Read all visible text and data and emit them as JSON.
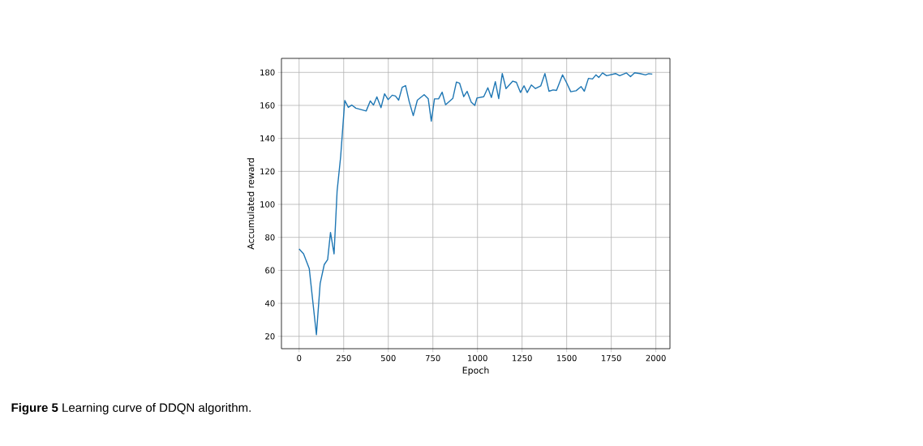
{
  "chart_data": {
    "type": "line",
    "xlabel": "Epoch",
    "ylabel": "Accumulated reward",
    "annotations": [
      "**Figure 5** Learning curve of DDQN algorithm."
    ],
    "x": [
      0,
      25,
      57,
      97,
      118,
      141,
      160,
      176,
      196,
      213,
      233,
      256,
      276,
      295,
      318,
      376,
      399,
      417,
      436,
      459,
      479,
      499,
      522,
      540,
      558,
      578,
      597,
      617,
      640,
      663,
      701,
      724,
      741,
      759,
      782,
      802,
      821,
      862,
      882,
      900,
      923,
      942,
      965,
      985,
      997,
      1035,
      1058,
      1078,
      1100,
      1119,
      1139,
      1160,
      1198,
      1218,
      1241,
      1261,
      1279,
      1302,
      1325,
      1355,
      1378,
      1401,
      1424,
      1443,
      1477,
      1500,
      1523,
      1553,
      1581,
      1599,
      1622,
      1645,
      1664,
      1680,
      1701,
      1724,
      1774,
      1797,
      1835,
      1858,
      1881,
      1911,
      1942,
      1960,
      1980
    ],
    "series": [
      {
        "color": "#1f77b4",
        "values": [
          73,
          70,
          61,
          21,
          52,
          63.5,
          66.5,
          83,
          70,
          108,
          129,
          163,
          158.8,
          160.2,
          158.3,
          156.6,
          162.7,
          160.2,
          165.2,
          158.6,
          167,
          163.5,
          166.2,
          165.7,
          163.2,
          171,
          172,
          162.4,
          153.8,
          163.2,
          166.5,
          164,
          150.5,
          164,
          164,
          168,
          160.4,
          164.3,
          174.2,
          173.4,
          165.3,
          168.5,
          162,
          160,
          164.5,
          165.3,
          170.7,
          164.8,
          174.4,
          164.1,
          179.3,
          170.2,
          174.7,
          174,
          167.8,
          171.9,
          167.8,
          172.4,
          170.2,
          171.9,
          179.3,
          168.6,
          169.4,
          169.1,
          178.5,
          173.6,
          168.3,
          168.9,
          171.4,
          168.6,
          176.4,
          176,
          178.5,
          176.9,
          179.7,
          178,
          179.3,
          178,
          179.7,
          177.4,
          179.8,
          179.3,
          178.5,
          179.2,
          179
        ]
      }
    ],
    "xlim": [
      -99,
      2079
    ],
    "ylim": [
      12.5,
      188.5
    ],
    "xticks": [
      0,
      250,
      500,
      750,
      1000,
      1250,
      1500,
      1750,
      2000
    ],
    "yticks": [
      20,
      40,
      60,
      80,
      100,
      120,
      140,
      160,
      180
    ],
    "grid": true,
    "marker": "none",
    "line_style": "solid"
  }
}
